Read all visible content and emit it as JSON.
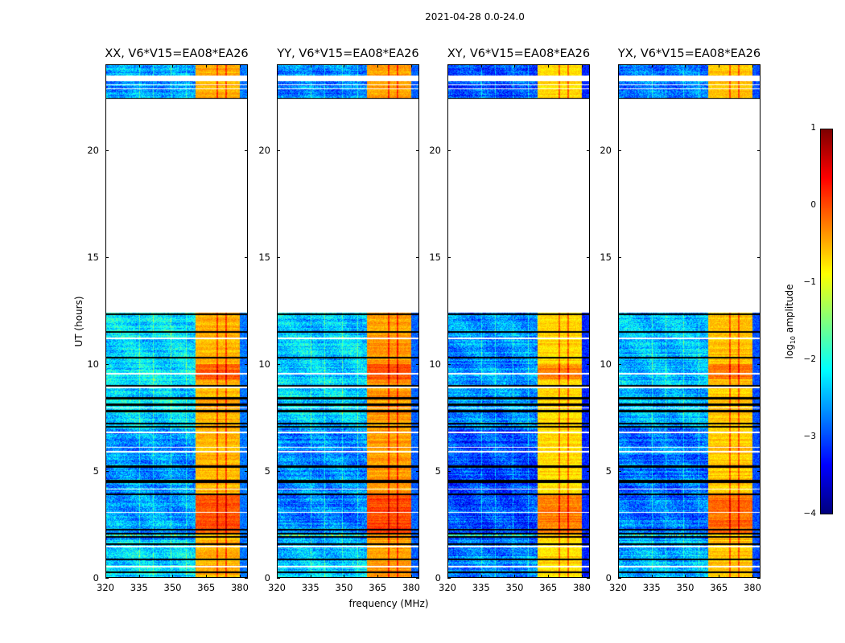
{
  "figure_title": "2021-04-28 0.0-24.0",
  "chart_data": {
    "type": "heatmap",
    "title": "2021-04-28 0.0-24.0",
    "xlabel": "frequency (MHz)",
    "ylabel": "UT (hours)",
    "xlim": [
      320,
      383.6
    ],
    "ylim": [
      0,
      24
    ],
    "xticks": [
      "320",
      "335",
      "350",
      "365",
      "380"
    ],
    "yticks": [
      "0",
      "5",
      "10",
      "15",
      "20"
    ],
    "panels": [
      {
        "title": "XX, V6*V15=EA08*EA26",
        "band_level": -0.5,
        "bg_level": -2.6
      },
      {
        "title": "YY, V6*V15=EA08*EA26",
        "band_level": -0.4,
        "bg_level": -2.7
      },
      {
        "title": "XY, V6*V15=EA08*EA26",
        "band_level": -0.7,
        "bg_level": -3.0
      },
      {
        "title": "YX, V6*V15=EA08*EA26",
        "band_level": -0.6,
        "bg_level": -2.8
      }
    ],
    "strong_band_mhz": [
      360,
      380
    ],
    "no_data_hours": [
      [
        12.4,
        22.45
      ],
      [
        23.26,
        23.53
      ],
      [
        6.75,
        6.85
      ]
    ],
    "colorbar": {
      "label_main": "log",
      "label_sub": "10",
      "label_rest": " amplitude",
      "colormap": "jet",
      "range": [
        -4,
        1
      ],
      "ticks": [
        "1",
        "0",
        "−1",
        "−2",
        "−3",
        "−4"
      ]
    }
  }
}
